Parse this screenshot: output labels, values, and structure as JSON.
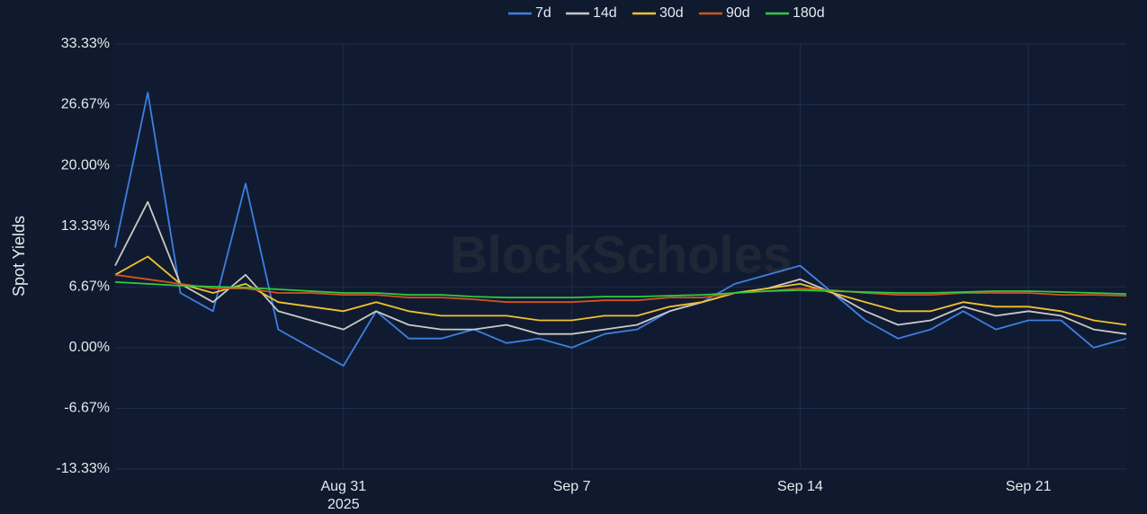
{
  "chart_data": {
    "type": "line",
    "y_label": "Spot Yields",
    "watermark": "BlockScholes",
    "x": [
      "2025-08-24",
      "2025-08-25",
      "2025-08-26",
      "2025-08-27",
      "2025-08-28",
      "2025-08-29",
      "2025-08-30",
      "2025-08-31",
      "2025-09-01",
      "2025-09-02",
      "2025-09-03",
      "2025-09-04",
      "2025-09-05",
      "2025-09-06",
      "2025-09-07",
      "2025-09-08",
      "2025-09-09",
      "2025-09-10",
      "2025-09-11",
      "2025-09-12",
      "2025-09-13",
      "2025-09-14",
      "2025-09-15",
      "2025-09-16",
      "2025-09-17",
      "2025-09-18",
      "2025-09-19",
      "2025-09-20",
      "2025-09-21",
      "2025-09-22",
      "2025-09-23",
      "2025-09-24"
    ],
    "series": [
      {
        "name": "7d",
        "color": "#3d7fe0",
        "values": [
          11,
          28,
          6,
          4,
          18,
          2,
          0,
          -2,
          4,
          1,
          1,
          2,
          0.5,
          1,
          0,
          1.5,
          2,
          4,
          5,
          7,
          8,
          9,
          6,
          3,
          1,
          2,
          4,
          2,
          3,
          3,
          0,
          1
        ]
      },
      {
        "name": "14d",
        "color": "#c9c9c9",
        "values": [
          9,
          16,
          7,
          5,
          8,
          4,
          3,
          2,
          4,
          2.5,
          2,
          2,
          2.5,
          1.5,
          1.5,
          2,
          2.5,
          4,
          5,
          6,
          6.5,
          7.5,
          6,
          4,
          2.5,
          3,
          4.5,
          3.5,
          4,
          3.5,
          2,
          1.5
        ]
      },
      {
        "name": "30d",
        "color": "#f2c12e",
        "values": [
          8,
          10,
          7,
          6,
          7,
          5,
          4.5,
          4,
          5,
          4,
          3.5,
          3.5,
          3.5,
          3,
          3,
          3.5,
          3.5,
          4.5,
          5,
          6,
          6.5,
          7,
          6,
          5,
          4,
          4,
          5,
          4.5,
          4.5,
          4,
          3,
          2.5
        ]
      },
      {
        "name": "90d",
        "color": "#d2541c",
        "values": [
          8,
          7.5,
          7,
          6.5,
          6.5,
          6,
          6,
          5.8,
          5.8,
          5.5,
          5.5,
          5.3,
          5,
          5,
          5,
          5.2,
          5.2,
          5.5,
          5.5,
          6,
          6.2,
          6.5,
          6.3,
          6,
          5.8,
          5.8,
          6,
          6,
          6,
          5.8,
          5.8,
          5.7
        ]
      },
      {
        "name": "180d",
        "color": "#2ecc40",
        "values": [
          7.2,
          7,
          6.8,
          6.7,
          6.6,
          6.4,
          6.2,
          6,
          6,
          5.8,
          5.8,
          5.6,
          5.5,
          5.5,
          5.5,
          5.6,
          5.6,
          5.7,
          5.8,
          6,
          6.2,
          6.3,
          6.2,
          6.1,
          6,
          6,
          6.1,
          6.2,
          6.2,
          6.1,
          6,
          5.9
        ]
      }
    ],
    "xlim": [
      "2025-08-24",
      "2025-09-24"
    ],
    "xticks": [
      {
        "value": "2025-08-31",
        "label": "Aug 31\n2025"
      },
      {
        "value": "2025-09-07",
        "label": "Sep 7"
      },
      {
        "value": "2025-09-14",
        "label": "Sep 14"
      },
      {
        "value": "2025-09-21",
        "label": "Sep 21"
      }
    ],
    "ylim": [
      -13.33,
      33.33
    ],
    "yticks": [
      {
        "value": -13.33,
        "label": "-13.33%"
      },
      {
        "value": -6.67,
        "label": "-6.67%"
      },
      {
        "value": 0,
        "label": "0.00%"
      },
      {
        "value": 6.67,
        "label": "6.67%"
      },
      {
        "value": 13.33,
        "label": "13.33%"
      },
      {
        "value": 20,
        "label": "20.00%"
      },
      {
        "value": 26.67,
        "label": "26.67%"
      },
      {
        "value": 33.33,
        "label": "33.33%"
      }
    ],
    "grid": true,
    "legend": "top"
  }
}
